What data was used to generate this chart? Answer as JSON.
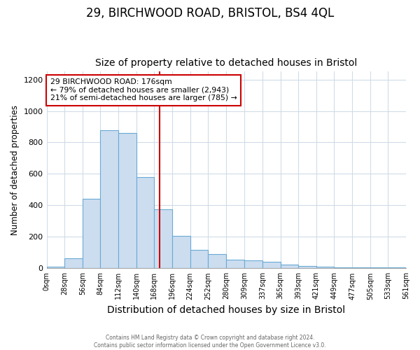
{
  "title": "29, BIRCHWOOD ROAD, BRISTOL, BS4 4QL",
  "subtitle": "Size of property relative to detached houses in Bristol",
  "xlabel": "Distribution of detached houses by size in Bristol",
  "ylabel": "Number of detached properties",
  "bar_values": [
    10,
    65,
    440,
    880,
    860,
    580,
    375,
    205,
    115,
    90,
    55,
    50,
    40,
    25,
    15,
    10,
    5,
    5,
    5,
    5
  ],
  "bin_edges": [
    0,
    28,
    56,
    84,
    112,
    140,
    168,
    196,
    224,
    252,
    280,
    309,
    337,
    365,
    393,
    421,
    449,
    477,
    505,
    533,
    561
  ],
  "tick_labels": [
    "0sqm",
    "28sqm",
    "56sqm",
    "84sqm",
    "112sqm",
    "140sqm",
    "168sqm",
    "196sqm",
    "224sqm",
    "252sqm",
    "280sqm",
    "309sqm",
    "337sqm",
    "365sqm",
    "393sqm",
    "421sqm",
    "449sqm",
    "477sqm",
    "505sqm",
    "533sqm",
    "561sqm"
  ],
  "bar_color": "#ccddf0",
  "bar_edge_color": "#6aaad4",
  "property_size": 176,
  "red_line_color": "#cc0000",
  "annotation_line1": "29 BIRCHWOOD ROAD: 176sqm",
  "annotation_line2": "← 79% of detached houses are smaller (2,943)",
  "annotation_line3": "21% of semi-detached houses are larger (785) →",
  "annotation_box_color": "#cc0000",
  "ylim": [
    0,
    1250
  ],
  "yticks": [
    0,
    200,
    400,
    600,
    800,
    1000,
    1200
  ],
  "footer_text": "Contains HM Land Registry data © Crown copyright and database right 2024.\nContains public sector information licensed under the Open Government Licence v3.0.",
  "background_color": "#ffffff",
  "grid_color": "#d0dce8",
  "title_fontsize": 12,
  "subtitle_fontsize": 10
}
